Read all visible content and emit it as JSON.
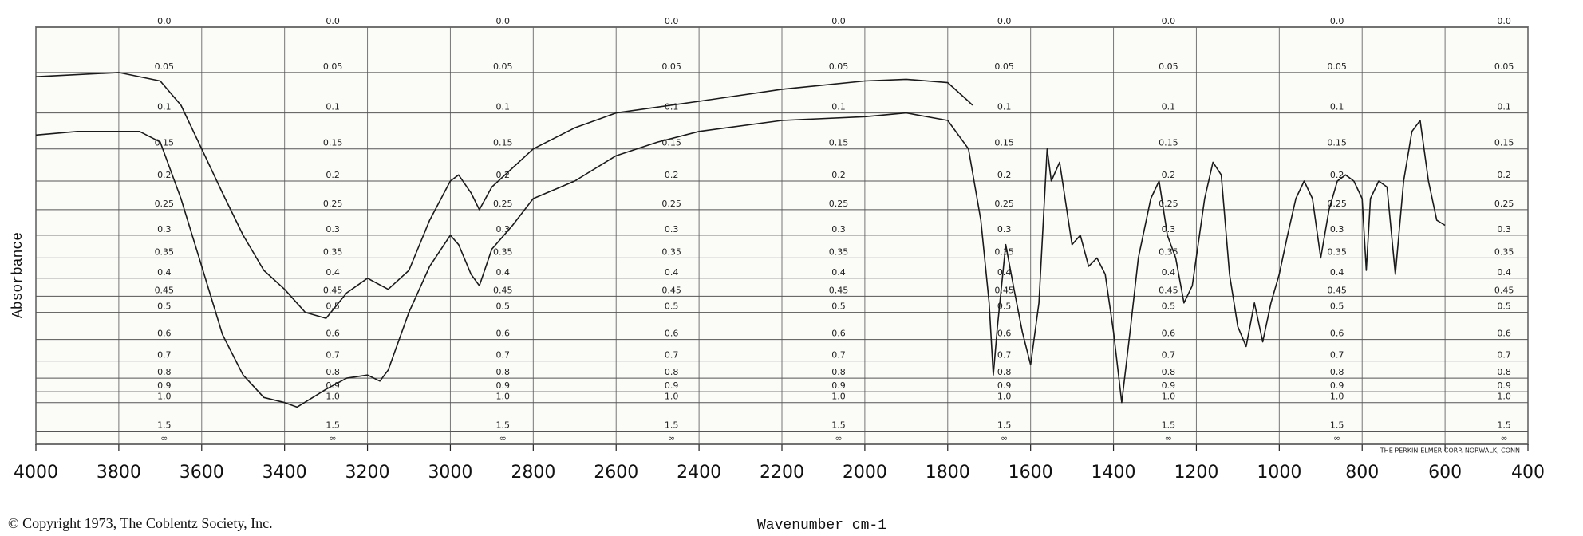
{
  "chart_data": {
    "type": "line",
    "ylabel": "Absorbance",
    "xlabel": "Wavenumber cm-1",
    "copyright": "© Copyright 1973, The Coblentz Society, Inc.",
    "maker_note": "THE PERKIN-ELMER CORP. NORWALK, CONN",
    "yscale": "transmittance",
    "grid": true,
    "xlim": [
      4000,
      400
    ],
    "xticks": [
      4000,
      3800,
      3600,
      3400,
      3200,
      3000,
      2800,
      2600,
      2400,
      2200,
      2000,
      1800,
      1600,
      1400,
      1200,
      1000,
      800,
      600,
      400
    ],
    "ylim": [
      0,
      null
    ],
    "yticks": [
      {
        "value": 0,
        "label": "0.0"
      },
      0.05,
      0.1,
      0.15,
      0.2,
      0.25,
      0.3,
      0.35,
      0.4,
      0.45,
      0.5,
      0.6,
      0.7,
      0.8,
      0.9,
      {
        "value": 1,
        "label": "1.0"
      },
      1.5,
      {
        "value": null,
        "label": "∞"
      }
    ],
    "series": [
      {
        "color": "#1a1a1a",
        "x": [
          4000,
          3800,
          3700,
          3650,
          3600,
          3550,
          3500,
          3450,
          3400,
          3350,
          3300,
          3250,
          3200,
          3150,
          3100,
          3050,
          3000,
          2980,
          2950,
          2930,
          2900,
          2800,
          2700,
          2600,
          2400,
          2200,
          2000,
          1900,
          1800,
          1750,
          1740
        ],
        "values": [
          0.055,
          0.05,
          0.06,
          0.09,
          0.15,
          0.22,
          0.3,
          0.38,
          0.43,
          0.5,
          0.52,
          0.44,
          0.4,
          0.43,
          0.38,
          0.27,
          0.2,
          0.19,
          0.22,
          0.25,
          0.21,
          0.15,
          0.12,
          0.1,
          0.085,
          0.07,
          0.06,
          0.058,
          0.062,
          0.085,
          0.09
        ]
      },
      {
        "color": "#1a1a1a",
        "x": [
          4000,
          3900,
          3750,
          3700,
          3650,
          3600,
          3550,
          3500,
          3450,
          3400,
          3370,
          3300,
          3250,
          3200,
          3170,
          3150,
          3100,
          3050,
          3000,
          2980,
          2950,
          2930,
          2900,
          2850,
          2800,
          2700,
          2600,
          2500,
          2400,
          2200,
          2000,
          1900,
          1800,
          1750,
          1720,
          1700,
          1690,
          1680,
          1660,
          1640,
          1620,
          1600,
          1580,
          1560,
          1550,
          1530,
          1500,
          1480,
          1460,
          1440,
          1420,
          1400,
          1380,
          1360,
          1340,
          1310,
          1290,
          1270,
          1250,
          1230,
          1210,
          1180,
          1160,
          1140,
          1120,
          1100,
          1080,
          1060,
          1040,
          1020,
          1000,
          980,
          960,
          940,
          920,
          900,
          880,
          860,
          840,
          820,
          800,
          790,
          780,
          760,
          740,
          720,
          700,
          680,
          660,
          640,
          620,
          600
        ],
        "values": [
          0.13,
          0.125,
          0.125,
          0.14,
          0.23,
          0.37,
          0.58,
          0.78,
          0.95,
          1.0,
          1.05,
          0.88,
          0.8,
          0.78,
          0.82,
          0.75,
          0.5,
          0.37,
          0.3,
          0.32,
          0.39,
          0.42,
          0.33,
          0.28,
          0.23,
          0.2,
          0.16,
          0.14,
          0.125,
          0.11,
          0.105,
          0.1,
          0.11,
          0.15,
          0.27,
          0.47,
          0.78,
          0.55,
          0.32,
          0.43,
          0.57,
          0.72,
          0.47,
          0.15,
          0.2,
          0.17,
          0.32,
          0.3,
          0.37,
          0.35,
          0.39,
          0.57,
          1.0,
          0.57,
          0.35,
          0.23,
          0.2,
          0.3,
          0.35,
          0.47,
          0.42,
          0.23,
          0.17,
          0.19,
          0.39,
          0.55,
          0.63,
          0.47,
          0.61,
          0.47,
          0.39,
          0.3,
          0.23,
          0.2,
          0.23,
          0.35,
          0.25,
          0.2,
          0.19,
          0.2,
          0.23,
          0.38,
          0.23,
          0.2,
          0.21,
          0.39,
          0.2,
          0.125,
          0.11,
          0.2,
          0.27,
          0.28
        ]
      }
    ]
  }
}
